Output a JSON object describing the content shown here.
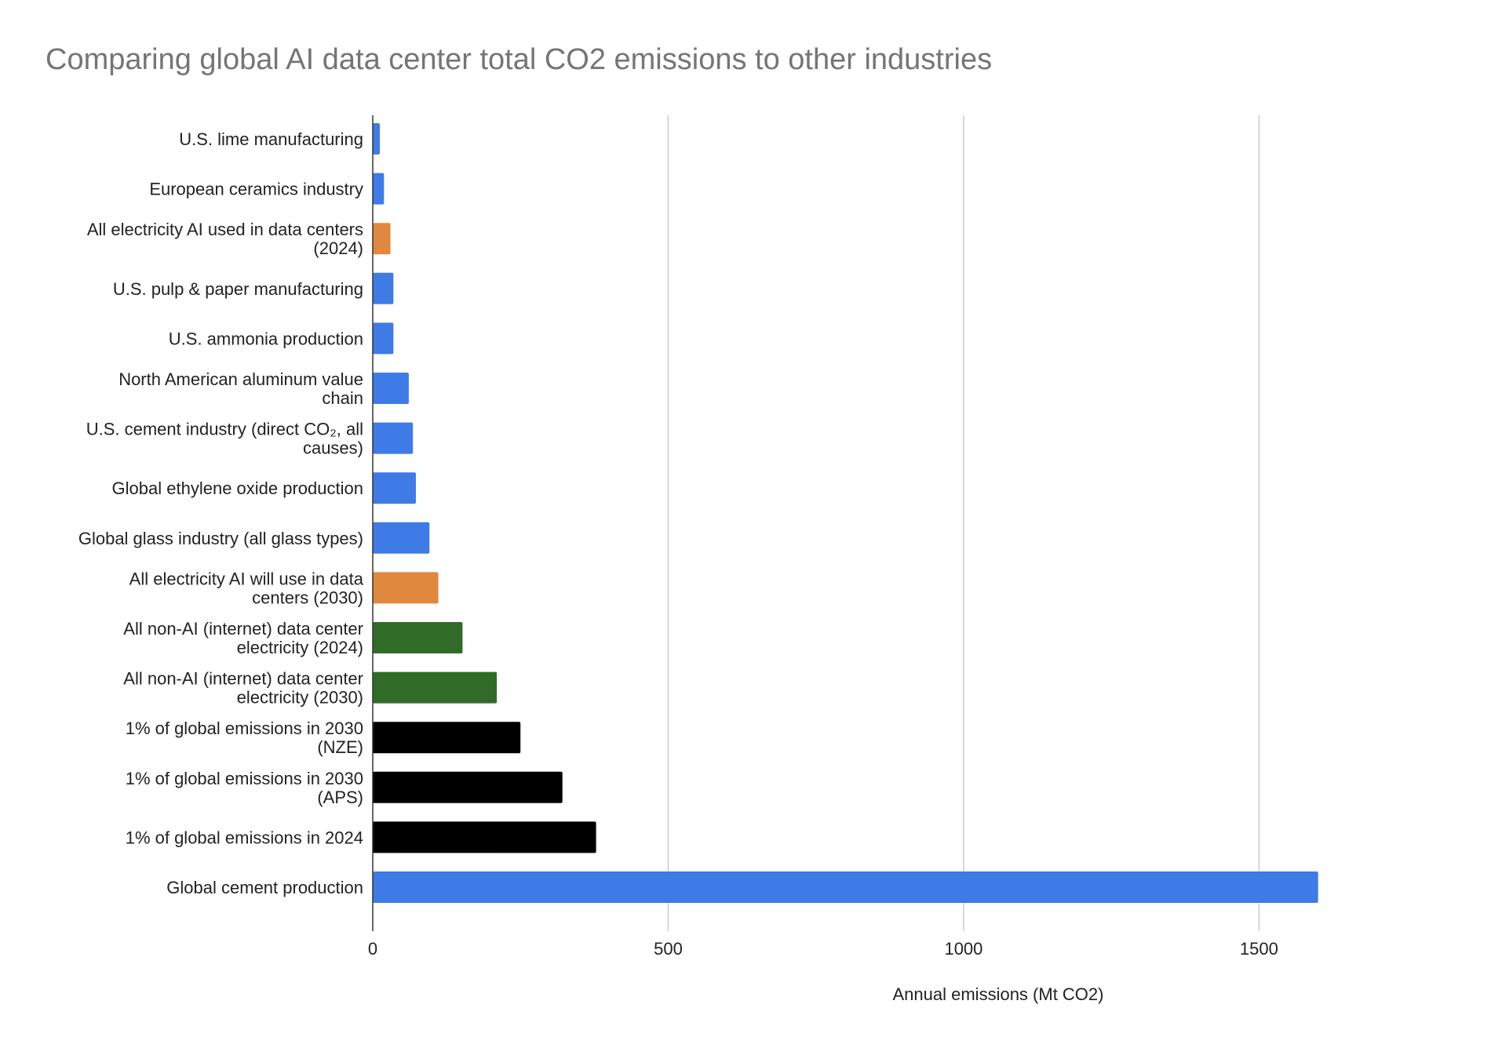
{
  "chart_data": {
    "type": "bar",
    "orientation": "horizontal",
    "title": "Comparing global AI data center total CO2 emissions to other industries",
    "xlabel": "Annual emissions (Mt CO2)",
    "ylabel": "",
    "xlim": [
      0,
      1700
    ],
    "xticks": [
      0,
      500,
      1000,
      1500
    ],
    "grid": true,
    "legend": "none",
    "colors": {
      "blue": "#3e7be6",
      "orange": "#e0883e",
      "green": "#316b28",
      "black": "#000000"
    },
    "bars": [
      {
        "label": [
          "U.S. lime manufacturing"
        ],
        "value": 12,
        "color": "blue"
      },
      {
        "label": [
          "European ceramics industry"
        ],
        "value": 19,
        "color": "blue"
      },
      {
        "label": [
          "All electricity AI used in data centers",
          "(2024)"
        ],
        "value": 30,
        "color": "orange"
      },
      {
        "label": [
          "U.S. pulp & paper manufacturing"
        ],
        "value": 35,
        "color": "blue"
      },
      {
        "label": [
          "U.S. ammonia production"
        ],
        "value": 35,
        "color": "blue"
      },
      {
        "label": [
          "North American aluminum value",
          "chain"
        ],
        "value": 61,
        "color": "blue"
      },
      {
        "label": [
          "U.S. cement industry (direct CO₂, all",
          "causes)"
        ],
        "value": 68,
        "color": "blue"
      },
      {
        "label": [
          "Global ethylene oxide production"
        ],
        "value": 73,
        "color": "blue"
      },
      {
        "label": [
          "Global glass industry (all glass types)"
        ],
        "value": 96,
        "color": "blue"
      },
      {
        "label": [
          "All electricity AI will use in data",
          "centers (2030)"
        ],
        "value": 111,
        "color": "orange"
      },
      {
        "label": [
          "All non-AI (internet) data center",
          "electricity (2024)"
        ],
        "value": 152,
        "color": "green"
      },
      {
        "label": [
          "All non-AI (internet) data center",
          "electricity (2030)"
        ],
        "value": 210,
        "color": "green"
      },
      {
        "label": [
          "1% of global emissions in 2030",
          "(NZE)"
        ],
        "value": 250,
        "color": "black"
      },
      {
        "label": [
          "1% of global emissions in 2030",
          "(APS)"
        ],
        "value": 321,
        "color": "black"
      },
      {
        "label": [
          "1% of global emissions in 2024"
        ],
        "value": 378,
        "color": "black"
      },
      {
        "label": [
          "Global cement production"
        ],
        "value": 1600,
        "color": "blue"
      }
    ]
  }
}
